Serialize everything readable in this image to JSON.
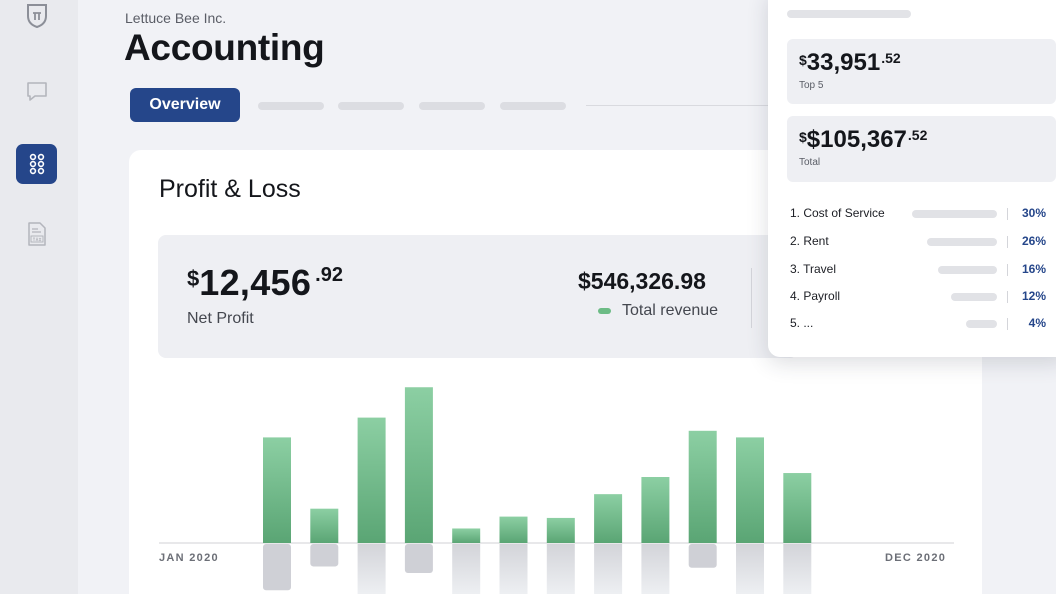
{
  "header": {
    "company": "Lettuce Bee Inc.",
    "title": "Accounting",
    "tabs": [
      {
        "label": "Overview",
        "active": true
      }
    ]
  },
  "sidebar": {
    "items": [
      {
        "icon": "shield-pi-icon",
        "active": false
      },
      {
        "icon": "chat-bubble-icon",
        "active": false
      },
      {
        "icon": "grid-icon",
        "active": true
      },
      {
        "icon": "tax-document-icon",
        "active": false
      }
    ]
  },
  "card": {
    "title": "Profit & Loss",
    "net_profit": {
      "currency": "$",
      "main": "12,456",
      "cents": ".92",
      "label": "Net Profit"
    },
    "revenue": {
      "value": "$546,326.98",
      "label": "Total revenue"
    }
  },
  "chart_data": {
    "type": "bar",
    "x_start_label": "JAN 2020",
    "x_end_label": "DEC 2020",
    "values": [
      80,
      26,
      95,
      118,
      11,
      20,
      19,
      37,
      50,
      85,
      80,
      53
    ],
    "negatives": [
      35,
      17,
      0,
      22,
      0,
      0,
      0,
      0,
      0,
      18,
      0,
      0
    ],
    "colors": {
      "bar": "#7dc597",
      "bar_dark": "#5aa574",
      "reflection": "#d6d7dc"
    }
  },
  "panel": {
    "top5": {
      "currency": "$",
      "main": "33,951",
      "cents": ".52",
      "label": "Top 5"
    },
    "total": {
      "currency": "$",
      "main": "$105,367",
      "cents": ".52",
      "label": "Total"
    },
    "items": [
      {
        "label": "1. Cost of Service",
        "pct": "30%"
      },
      {
        "label": "2. Rent",
        "pct": "26%"
      },
      {
        "label": "3. Travel",
        "pct": "16%"
      },
      {
        "label": "4. Payroll",
        "pct": "12%"
      },
      {
        "label": "5. ...",
        "pct": "4%"
      }
    ]
  }
}
